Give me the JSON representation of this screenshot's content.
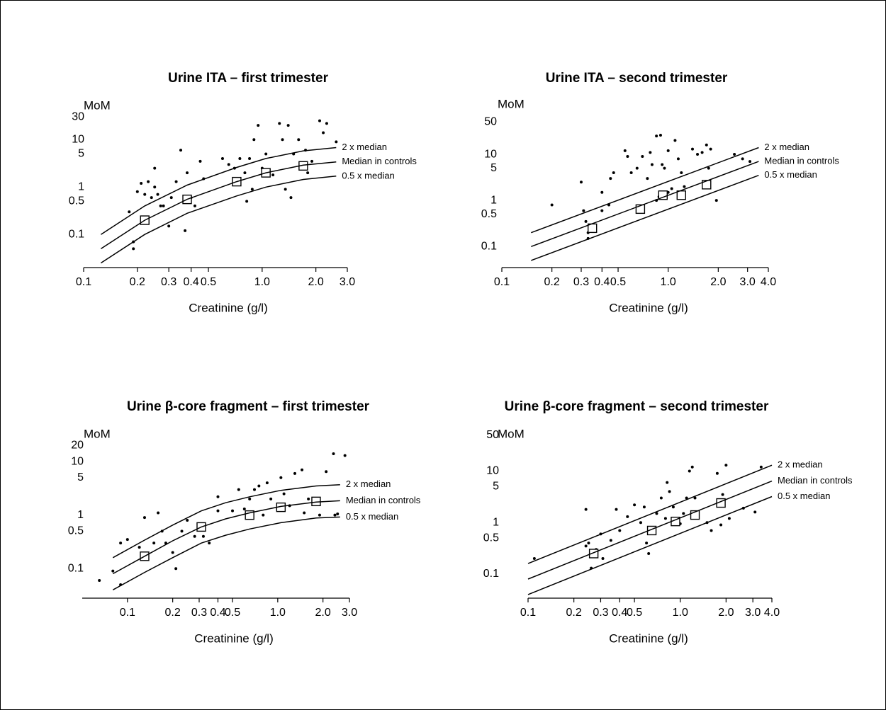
{
  "chart_data": [
    {
      "type": "scatter",
      "title": "Urine ITA – first trimester",
      "y_label": "MoM",
      "x_label": "Creatinine (g/l)",
      "log_x": true,
      "log_y": true,
      "color": "#000000",
      "xlim": [
        0.1,
        3.0
      ],
      "ylim": [
        0.02,
        40
      ],
      "xticks": [
        0.1,
        0.2,
        0.3,
        0.4,
        0.5,
        {
          "value": 1,
          "label": "1.0"
        },
        {
          "value": 2,
          "label": "2.0"
        },
        {
          "value": 3,
          "label": "3.0"
        }
      ],
      "yticks": [
        0.1,
        0.5,
        1,
        5,
        10,
        30
      ],
      "series": [
        {
          "marker": "dot",
          "x": [
            0.18,
            0.19,
            0.19,
            0.2,
            0.21,
            0.22,
            0.23,
            0.24,
            0.25,
            0.25,
            0.26,
            0.27,
            0.28,
            0.3,
            0.31,
            0.33,
            0.35,
            0.37,
            0.38,
            0.4,
            0.42,
            0.45,
            0.47,
            0.6,
            0.65,
            0.7,
            0.75,
            0.8,
            0.82,
            0.85,
            0.88,
            0.9,
            0.95,
            1.0,
            1.05,
            1.15,
            1.25,
            1.3,
            1.35,
            1.4,
            1.45,
            1.5,
            1.6,
            1.8,
            1.9,
            2.1,
            2.2,
            2.3,
            2.6,
            1.75
          ],
          "values": [
            0.3,
            0.05,
            0.07,
            0.8,
            1.2,
            0.7,
            1.3,
            0.6,
            2.5,
            1.0,
            0.7,
            0.4,
            0.4,
            0.15,
            0.6,
            1.3,
            6,
            0.12,
            2,
            0.6,
            0.4,
            3.5,
            1.5,
            4,
            3,
            2.5,
            4,
            2,
            0.5,
            4,
            0.9,
            10,
            20,
            2.5,
            5,
            1.8,
            22,
            10,
            0.9,
            20,
            0.6,
            5,
            10,
            2,
            3.5,
            25,
            14,
            22,
            9,
            6
          ]
        },
        {
          "marker": "square",
          "x": [
            0.22,
            0.38,
            0.72,
            1.05,
            1.7
          ],
          "values": [
            0.2,
            0.55,
            1.3,
            2.0,
            2.8
          ]
        },
        {
          "marker": "line",
          "name": "2 x median",
          "x": [
            0.125,
            0.22,
            0.38,
            0.72,
            1.05,
            1.7,
            2.6
          ],
          "values": [
            0.1,
            0.4,
            1.1,
            2.6,
            4.0,
            5.8,
            6.8
          ]
        },
        {
          "marker": "line",
          "name": "Median in controls",
          "x": [
            0.125,
            0.22,
            0.38,
            0.72,
            1.05,
            1.7,
            2.6
          ],
          "values": [
            0.05,
            0.2,
            0.55,
            1.3,
            2.0,
            2.9,
            3.4
          ]
        },
        {
          "marker": "line",
          "name": "0.5 x median",
          "x": [
            0.125,
            0.22,
            0.38,
            0.72,
            1.05,
            1.7,
            2.6
          ],
          "values": [
            0.025,
            0.1,
            0.28,
            0.65,
            1.0,
            1.45,
            1.7
          ]
        }
      ]
    },
    {
      "type": "scatter",
      "title": "Urine ITA – second trimester",
      "y_label": "MoM",
      "x_label": "Creatinine (g/l)",
      "log_x": true,
      "log_y": true,
      "color": "#000000",
      "xlim": [
        0.1,
        4.0
      ],
      "ylim": [
        0.035,
        70
      ],
      "xticks": [
        0.1,
        0.2,
        0.3,
        0.4,
        0.5,
        {
          "value": 1,
          "label": "1.0"
        },
        {
          "value": 2,
          "label": "2.0"
        },
        {
          "value": 3,
          "label": "3.0"
        },
        {
          "value": 4,
          "label": "4.0"
        }
      ],
      "yticks": [
        0.1,
        0.5,
        1,
        5,
        10,
        50
      ],
      "series": [
        {
          "marker": "dot",
          "x": [
            0.2,
            0.3,
            0.31,
            0.32,
            0.33,
            0.33,
            0.4,
            0.4,
            0.44,
            0.45,
            0.47,
            0.55,
            0.57,
            0.6,
            0.65,
            0.7,
            0.75,
            0.78,
            0.8,
            0.85,
            0.85,
            0.9,
            0.92,
            0.95,
            1.0,
            1.05,
            1.1,
            1.15,
            1.2,
            1.25,
            1.4,
            1.5,
            1.6,
            1.7,
            1.75,
            1.8,
            1.95,
            2.5,
            2.8,
            3.1,
            1.0,
            0.88
          ],
          "values": [
            0.8,
            2.5,
            0.6,
            0.35,
            0.2,
            0.15,
            1.5,
            0.6,
            0.8,
            3,
            4,
            12,
            9,
            4,
            5,
            9,
            3,
            11,
            6,
            25,
            1,
            26,
            6,
            5,
            12,
            1.8,
            20,
            8,
            4,
            2,
            13,
            10,
            11,
            16,
            5,
            13,
            1,
            10,
            8,
            7,
            1.5,
            1.2
          ]
        },
        {
          "marker": "square",
          "x": [
            0.35,
            0.68,
            0.93,
            1.2,
            1.7
          ],
          "values": [
            0.25,
            0.65,
            1.3,
            1.3,
            2.2
          ]
        },
        {
          "marker": "line",
          "name": "2 x median",
          "x": [
            0.15,
            3.5
          ],
          "values": [
            0.2,
            14
          ]
        },
        {
          "marker": "line",
          "name": "Median in controls",
          "x": [
            0.15,
            3.5
          ],
          "values": [
            0.1,
            7
          ]
        },
        {
          "marker": "line",
          "name": "0.5 x median",
          "x": [
            0.15,
            3.5
          ],
          "values": [
            0.05,
            3.5
          ]
        }
      ]
    },
    {
      "type": "scatter",
      "title": "Urine β-core fragment – first trimester",
      "y_label": "MoM",
      "x_label": "Creatinine (g/l)",
      "log_x": true,
      "log_y": true,
      "color": "#000000",
      "xlim": [
        0.05,
        3.0
      ],
      "ylim": [
        0.028,
        30
      ],
      "xticks": [
        0.1,
        0.2,
        0.3,
        0.4,
        0.5,
        {
          "value": 1,
          "label": "1.0"
        },
        {
          "value": 2,
          "label": "2.0"
        },
        {
          "value": 3,
          "label": "3.0"
        }
      ],
      "yticks": [
        0.1,
        0.5,
        1,
        5,
        10,
        20
      ],
      "series": [
        {
          "marker": "dot",
          "x": [
            0.065,
            0.08,
            0.09,
            0.09,
            0.1,
            0.12,
            0.13,
            0.15,
            0.16,
            0.17,
            0.18,
            0.2,
            0.21,
            0.23,
            0.25,
            0.28,
            0.32,
            0.35,
            0.4,
            0.4,
            0.5,
            0.55,
            0.6,
            0.65,
            0.7,
            0.75,
            0.8,
            0.85,
            0.9,
            1.0,
            1.05,
            1.1,
            1.2,
            1.3,
            1.45,
            1.5,
            1.6,
            1.8,
            1.9,
            2.1,
            2.35,
            2.4,
            2.8,
            2.5
          ],
          "values": [
            0.06,
            0.09,
            0.3,
            0.05,
            0.35,
            0.25,
            0.9,
            0.3,
            1.1,
            0.5,
            0.3,
            0.2,
            0.1,
            0.5,
            0.8,
            0.4,
            0.4,
            0.3,
            1.2,
            2.2,
            1.2,
            3,
            1.3,
            2,
            3,
            3.5,
            1,
            4,
            2,
            1.5,
            5,
            2.5,
            1.5,
            6,
            7,
            1.1,
            2,
            1.6,
            1,
            6.5,
            14,
            1,
            13,
            1.05
          ]
        },
        {
          "marker": "square",
          "x": [
            0.13,
            0.31,
            0.65,
            1.05,
            1.8
          ],
          "values": [
            0.17,
            0.6,
            1.0,
            1.4,
            1.8
          ]
        },
        {
          "marker": "line",
          "name": "2 x median",
          "x": [
            0.08,
            0.13,
            0.2,
            0.31,
            0.45,
            0.65,
            1.05,
            1.8,
            2.6
          ],
          "values": [
            0.16,
            0.34,
            0.65,
            1.2,
            1.7,
            2.2,
            2.9,
            3.5,
            3.7
          ]
        },
        {
          "marker": "line",
          "name": "Median in controls",
          "x": [
            0.08,
            0.13,
            0.2,
            0.31,
            0.45,
            0.65,
            1.05,
            1.8,
            2.6
          ],
          "values": [
            0.08,
            0.17,
            0.33,
            0.6,
            0.85,
            1.1,
            1.45,
            1.75,
            1.85
          ]
        },
        {
          "marker": "line",
          "name": "0.5 x median",
          "x": [
            0.08,
            0.13,
            0.2,
            0.31,
            0.45,
            0.65,
            1.05,
            1.8,
            2.6
          ],
          "values": [
            0.04,
            0.085,
            0.16,
            0.3,
            0.42,
            0.55,
            0.72,
            0.88,
            0.92
          ]
        }
      ]
    },
    {
      "type": "scatter",
      "title": "Urine β-core fragment – second trimester",
      "y_label": "MoM",
      "x_label": "Creatinine (g/l)",
      "log_x": true,
      "log_y": true,
      "color": "#000000",
      "xlim": [
        0.1,
        4.0
      ],
      "ylim": [
        0.034,
        70
      ],
      "xticks": [
        0.1,
        0.2,
        0.3,
        0.4,
        0.5,
        {
          "value": 1,
          "label": "1.0"
        },
        {
          "value": 2,
          "label": "2.0"
        },
        {
          "value": 3,
          "label": "3.0"
        },
        {
          "value": 4,
          "label": "4.0"
        }
      ],
      "yticks": [
        0.1,
        0.5,
        1,
        5,
        10,
        50
      ],
      "series": [
        {
          "marker": "dot",
          "x": [
            0.11,
            0.24,
            0.24,
            0.25,
            0.26,
            0.28,
            0.3,
            0.31,
            0.35,
            0.38,
            0.4,
            0.45,
            0.5,
            0.55,
            0.58,
            0.6,
            0.62,
            0.7,
            0.75,
            0.8,
            0.82,
            0.85,
            0.9,
            0.95,
            1.0,
            1.05,
            1.1,
            1.15,
            1.2,
            1.25,
            1.5,
            1.6,
            1.75,
            1.85,
            1.9,
            2.0,
            2.1,
            2.6,
            3.1,
            3.4
          ],
          "values": [
            0.2,
            0.35,
            1.8,
            0.4,
            0.13,
            0.3,
            0.6,
            0.2,
            0.45,
            1.8,
            0.7,
            1.3,
            2.2,
            1,
            2,
            0.4,
            0.25,
            1.5,
            3,
            1.2,
            6,
            4,
            2,
            1,
            0.95,
            1.5,
            3,
            10,
            12,
            3,
            1,
            0.7,
            9,
            0.9,
            3.5,
            13,
            1.2,
            1.9,
            1.6,
            12
          ]
        },
        {
          "marker": "square",
          "x": [
            0.27,
            0.65,
            0.93,
            1.25,
            1.85
          ],
          "values": [
            0.25,
            0.7,
            1.05,
            1.4,
            2.4
          ]
        },
        {
          "marker": "line",
          "name": "2 x median",
          "x": [
            0.1,
            4.0
          ],
          "values": [
            0.16,
            13
          ]
        },
        {
          "marker": "line",
          "name": "Median in controls",
          "x": [
            0.1,
            4.0
          ],
          "values": [
            0.08,
            6.4
          ]
        },
        {
          "marker": "line",
          "name": "0.5 x median",
          "x": [
            0.1,
            4.0
          ],
          "values": [
            0.04,
            3.2
          ]
        }
      ]
    }
  ]
}
